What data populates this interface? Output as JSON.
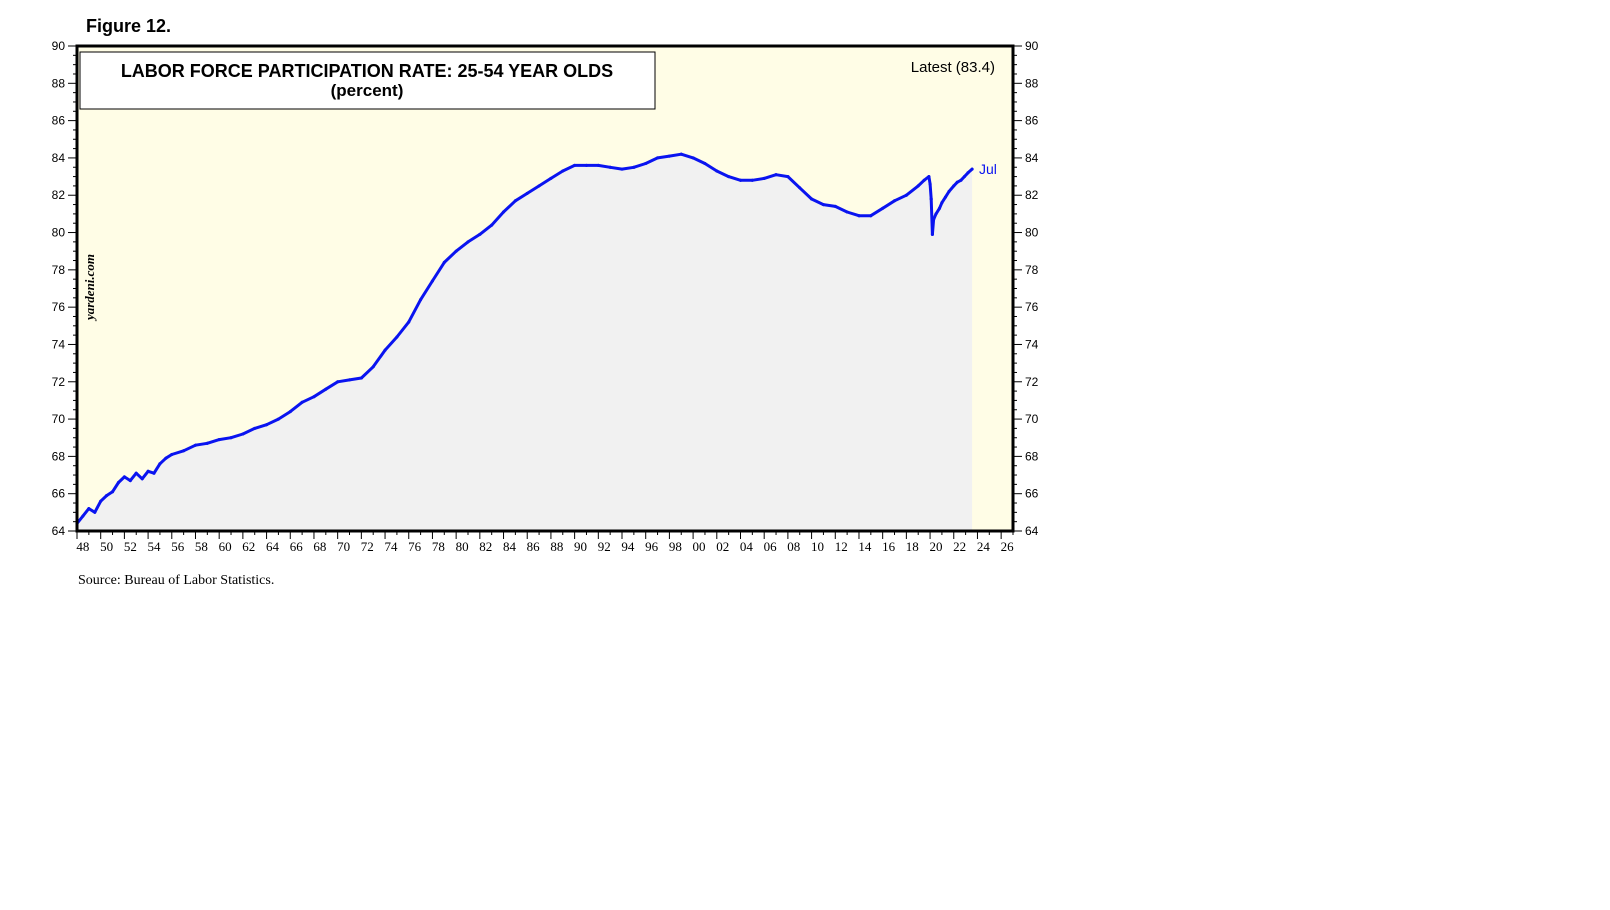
{
  "figure_label": "Figure 12.",
  "source": "Source: Bureau of Labor Statistics.",
  "watermark": "yardeni.com",
  "colors": {
    "plot_bg": "#fffde6",
    "area_fill": "#f1f1f1",
    "line": "#0a14f0",
    "axis": "#000000"
  },
  "chart_data": {
    "type": "line",
    "title": "LABOR FORCE PARTICIPATION RATE: 25-54 YEAR OLDS",
    "subtitle": "(percent)",
    "latest_note": "Latest (83.4)",
    "end_label": "Jul",
    "ylim": [
      64,
      90
    ],
    "yticks": [
      64,
      66,
      68,
      70,
      72,
      74,
      76,
      78,
      80,
      82,
      84,
      86,
      88,
      90
    ],
    "ytick_labels": [
      "64",
      "66",
      "68",
      "70",
      "72",
      "74",
      "76",
      "78",
      "80",
      "82",
      "84",
      "86",
      "88",
      "90"
    ],
    "xlim": [
      1948,
      2027
    ],
    "xticks": [
      1948,
      1950,
      1952,
      1954,
      1956,
      1958,
      1960,
      1962,
      1964,
      1966,
      1968,
      1970,
      1972,
      1974,
      1976,
      1978,
      1980,
      1982,
      1984,
      1986,
      1988,
      1990,
      1992,
      1994,
      1996,
      1998,
      2000,
      2002,
      2004,
      2006,
      2008,
      2010,
      2012,
      2014,
      2016,
      2018,
      2020,
      2022,
      2024,
      2026
    ],
    "xtick_labels": [
      "48",
      "50",
      "52",
      "54",
      "56",
      "58",
      "60",
      "62",
      "64",
      "66",
      "68",
      "70",
      "72",
      "74",
      "76",
      "78",
      "80",
      "82",
      "84",
      "86",
      "88",
      "90",
      "92",
      "94",
      "96",
      "98",
      "00",
      "02",
      "04",
      "06",
      "08",
      "10",
      "12",
      "14",
      "16",
      "18",
      "20",
      "22",
      "24",
      "26"
    ],
    "grid": false,
    "series": [
      {
        "x": [
          1948.0,
          1948.5,
          1949.0,
          1949.5,
          1950.0,
          1950.5,
          1951.0,
          1951.5,
          1952.0,
          1952.5,
          1953.0,
          1953.5,
          1954.0,
          1954.5,
          1955.0,
          1955.5,
          1956.0,
          1957.0,
          1958.0,
          1959.0,
          1960.0,
          1961.0,
          1962.0,
          1963.0,
          1964.0,
          1965.0,
          1966.0,
          1967.0,
          1968.0,
          1969.0,
          1970.0,
          1971.0,
          1972.0,
          1973.0,
          1974.0,
          1975.0,
          1976.0,
          1977.0,
          1978.0,
          1979.0,
          1980.0,
          1981.0,
          1982.0,
          1983.0,
          1984.0,
          1985.0,
          1986.0,
          1987.0,
          1988.0,
          1989.0,
          1990.0,
          1991.0,
          1992.0,
          1993.0,
          1994.0,
          1995.0,
          1996.0,
          1997.0,
          1998.0,
          1999.0,
          2000.0,
          2001.0,
          2002.0,
          2003.0,
          2004.0,
          2005.0,
          2006.0,
          2007.0,
          2008.0,
          2009.0,
          2010.0,
          2011.0,
          2012.0,
          2013.0,
          2014.0,
          2015.0,
          2016.0,
          2017.0,
          2018.0,
          2019.0,
          2019.5,
          2019.9,
          2020.0,
          2020.1,
          2020.2,
          2020.3,
          2020.5,
          2020.8,
          2021.0,
          2021.3,
          2021.6,
          2022.0,
          2022.3,
          2022.6,
          2022.9,
          2023.2,
          2023.55
        ],
        "values": [
          64.4,
          64.8,
          65.2,
          65.0,
          65.6,
          65.9,
          66.1,
          66.6,
          66.9,
          66.7,
          67.1,
          66.8,
          67.2,
          67.1,
          67.6,
          67.9,
          68.1,
          68.3,
          68.6,
          68.7,
          68.9,
          69.0,
          69.2,
          69.5,
          69.7,
          70.0,
          70.4,
          70.9,
          71.2,
          71.6,
          72.0,
          72.1,
          72.2,
          72.8,
          73.7,
          74.4,
          75.2,
          76.4,
          77.4,
          78.4,
          79.0,
          79.5,
          79.9,
          80.4,
          81.1,
          81.7,
          82.1,
          82.5,
          82.9,
          83.3,
          83.6,
          83.6,
          83.6,
          83.5,
          83.4,
          83.5,
          83.7,
          84.0,
          84.1,
          84.2,
          84.0,
          83.7,
          83.3,
          83.0,
          82.8,
          82.8,
          82.9,
          83.1,
          83.0,
          82.4,
          81.8,
          81.5,
          81.4,
          81.1,
          80.9,
          80.9,
          81.3,
          81.7,
          82.0,
          82.5,
          82.8,
          83.0,
          82.6,
          81.8,
          79.9,
          80.7,
          81.0,
          81.3,
          81.6,
          81.9,
          82.2,
          82.5,
          82.7,
          82.8,
          83.0,
          83.2,
          83.4
        ]
      }
    ]
  }
}
